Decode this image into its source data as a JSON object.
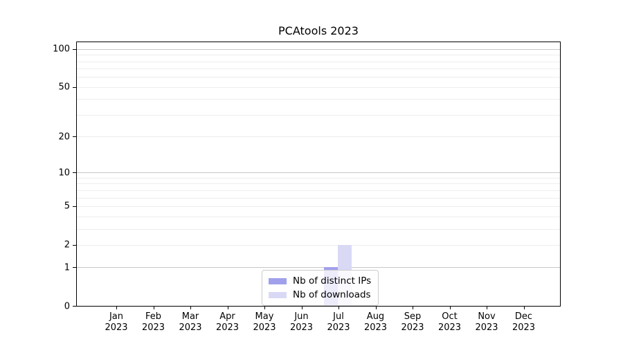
{
  "chart_data": {
    "type": "bar",
    "title": "PCAtools 2023",
    "categories": [
      {
        "month": "Jan",
        "year": "2023"
      },
      {
        "month": "Feb",
        "year": "2023"
      },
      {
        "month": "Mar",
        "year": "2023"
      },
      {
        "month": "Apr",
        "year": "2023"
      },
      {
        "month": "May",
        "year": "2023"
      },
      {
        "month": "Jun",
        "year": "2023"
      },
      {
        "month": "Jul",
        "year": "2023"
      },
      {
        "month": "Aug",
        "year": "2023"
      },
      {
        "month": "Sep",
        "year": "2023"
      },
      {
        "month": "Oct",
        "year": "2023"
      },
      {
        "month": "Nov",
        "year": "2023"
      },
      {
        "month": "Dec",
        "year": "2023"
      }
    ],
    "series": [
      {
        "name": "Nb of distinct IPs",
        "color": "#a0a0ec",
        "values": [
          0,
          0,
          0,
          0,
          0,
          0,
          1,
          0,
          0,
          0,
          0,
          0
        ]
      },
      {
        "name": "Nb of downloads",
        "color": "#d9d9f6",
        "values": [
          0,
          0,
          0,
          0,
          0,
          0,
          2,
          0,
          0,
          0,
          0,
          0
        ]
      }
    ],
    "yscale": "log1p",
    "ylim": [
      0,
      113
    ],
    "yticks": [
      0,
      1,
      2,
      5,
      10,
      20,
      50,
      100
    ],
    "grid": true,
    "grid_major": [
      1,
      10,
      100
    ],
    "grid_minor": [
      2,
      3,
      4,
      5,
      6,
      7,
      8,
      9,
      20,
      30,
      40,
      50,
      60,
      70,
      80,
      90
    ],
    "legend_position": "lower center",
    "xlabel": "",
    "ylabel": ""
  },
  "colors": {
    "background": "#ffffff",
    "spine": "#000000",
    "grid_major": "#c8c8c8",
    "grid_minor": "#ededed",
    "legend_border": "#cccccc",
    "text": "#000000"
  }
}
